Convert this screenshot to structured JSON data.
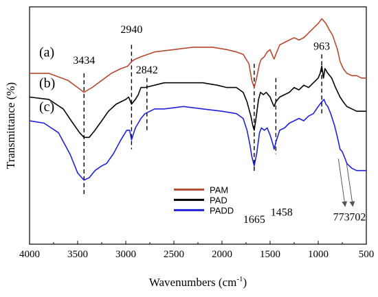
{
  "chart_data": {
    "type": "line",
    "xlabel": "Wavenumbers (cm",
    "xlabel_sup": "-1",
    "xlabel_end": ")",
    "ylabel": "Transmittance (%)",
    "xlim": [
      4000,
      500
    ],
    "x_reversed": true,
    "xticks": [
      4000,
      3500,
      3000,
      2500,
      2000,
      1500,
      1000,
      500
    ],
    "y_tick_labels_shown": false,
    "ylim": [
      0,
      100
    ],
    "legend": {
      "position": "bottom-center"
    },
    "series": [
      {
        "name": "PAM",
        "trace_label": "(a)",
        "color": "#b3492f",
        "points": [
          [
            4000,
            72
          ],
          [
            3800,
            72
          ],
          [
            3600,
            69
          ],
          [
            3500,
            66
          ],
          [
            3434,
            64
          ],
          [
            3350,
            66
          ],
          [
            3250,
            69
          ],
          [
            3150,
            72
          ],
          [
            3050,
            74
          ],
          [
            2980,
            75
          ],
          [
            2940,
            77
          ],
          [
            2900,
            78
          ],
          [
            2842,
            79
          ],
          [
            2700,
            81
          ],
          [
            2500,
            82
          ],
          [
            2300,
            83
          ],
          [
            2100,
            83
          ],
          [
            1950,
            82
          ],
          [
            1850,
            81
          ],
          [
            1780,
            80
          ],
          [
            1720,
            76
          ],
          [
            1690,
            69
          ],
          [
            1665,
            66
          ],
          [
            1640,
            70
          ],
          [
            1610,
            76
          ],
          [
            1590,
            78
          ],
          [
            1560,
            79
          ],
          [
            1530,
            81
          ],
          [
            1500,
            82
          ],
          [
            1470,
            79
          ],
          [
            1458,
            78
          ],
          [
            1440,
            80
          ],
          [
            1400,
            84
          ],
          [
            1350,
            85
          ],
          [
            1300,
            86
          ],
          [
            1250,
            87
          ],
          [
            1200,
            86
          ],
          [
            1150,
            87
          ],
          [
            1100,
            89
          ],
          [
            1050,
            91
          ],
          [
            1000,
            93
          ],
          [
            963,
            95
          ],
          [
            920,
            93
          ],
          [
            880,
            90
          ],
          [
            850,
            88
          ],
          [
            800,
            82
          ],
          [
            773,
            77
          ],
          [
            740,
            74
          ],
          [
            702,
            72
          ],
          [
            650,
            71
          ],
          [
            600,
            71
          ],
          [
            550,
            70
          ],
          [
            500,
            70
          ]
        ]
      },
      {
        "name": "PAD",
        "trace_label": "(b)",
        "color": "#000000",
        "points": [
          [
            4000,
            62
          ],
          [
            3800,
            61
          ],
          [
            3650,
            57
          ],
          [
            3550,
            51
          ],
          [
            3480,
            47
          ],
          [
            3434,
            45
          ],
          [
            3380,
            45
          ],
          [
            3320,
            48
          ],
          [
            3250,
            52
          ],
          [
            3180,
            56
          ],
          [
            3100,
            59
          ],
          [
            3000,
            61
          ],
          [
            2970,
            62
          ],
          [
            2940,
            59
          ],
          [
            2900,
            61
          ],
          [
            2870,
            63
          ],
          [
            2842,
            66
          ],
          [
            2800,
            66
          ],
          [
            2700,
            67
          ],
          [
            2600,
            68
          ],
          [
            2400,
            68
          ],
          [
            2200,
            68
          ],
          [
            2050,
            67
          ],
          [
            1950,
            66
          ],
          [
            1850,
            66
          ],
          [
            1780,
            64
          ],
          [
            1740,
            60
          ],
          [
            1700,
            54
          ],
          [
            1680,
            50
          ],
          [
            1665,
            48
          ],
          [
            1650,
            52
          ],
          [
            1620,
            61
          ],
          [
            1600,
            64
          ],
          [
            1570,
            63
          ],
          [
            1540,
            64
          ],
          [
            1500,
            62
          ],
          [
            1470,
            59
          ],
          [
            1458,
            58
          ],
          [
            1440,
            60
          ],
          [
            1400,
            62
          ],
          [
            1350,
            63
          ],
          [
            1300,
            64
          ],
          [
            1250,
            66
          ],
          [
            1200,
            65
          ],
          [
            1150,
            67
          ],
          [
            1100,
            66
          ],
          [
            1050,
            68
          ],
          [
            1000,
            70
          ],
          [
            980,
            72
          ],
          [
            963,
            75
          ],
          [
            945,
            70
          ],
          [
            930,
            74
          ],
          [
            900,
            72
          ],
          [
            860,
            70
          ],
          [
            820,
            66
          ],
          [
            773,
            62
          ],
          [
            740,
            60
          ],
          [
            702,
            58
          ],
          [
            650,
            57
          ],
          [
            600,
            56
          ],
          [
            550,
            56
          ],
          [
            500,
            56
          ]
        ]
      },
      {
        "name": "PADD",
        "trace_label": "(c)",
        "color": "#1f1fd6",
        "points": [
          [
            4000,
            52
          ],
          [
            3850,
            51
          ],
          [
            3700,
            47
          ],
          [
            3580,
            38
          ],
          [
            3500,
            30
          ],
          [
            3434,
            27
          ],
          [
            3380,
            28
          ],
          [
            3320,
            31
          ],
          [
            3250,
            33
          ],
          [
            3200,
            34
          ],
          [
            3130,
            38
          ],
          [
            3050,
            44
          ],
          [
            2990,
            48
          ],
          [
            2960,
            48
          ],
          [
            2940,
            44
          ],
          [
            2900,
            49
          ],
          [
            2842,
            53
          ],
          [
            2800,
            55
          ],
          [
            2700,
            57
          ],
          [
            2600,
            57
          ],
          [
            2400,
            58
          ],
          [
            2200,
            57
          ],
          [
            2000,
            56
          ],
          [
            1850,
            55
          ],
          [
            1780,
            53
          ],
          [
            1740,
            48
          ],
          [
            1710,
            42
          ],
          [
            1690,
            37
          ],
          [
            1665,
            33
          ],
          [
            1640,
            38
          ],
          [
            1610,
            47
          ],
          [
            1590,
            49
          ],
          [
            1560,
            48
          ],
          [
            1530,
            49
          ],
          [
            1500,
            46
          ],
          [
            1470,
            42
          ],
          [
            1458,
            40
          ],
          [
            1440,
            43
          ],
          [
            1400,
            48
          ],
          [
            1350,
            49
          ],
          [
            1300,
            51
          ],
          [
            1250,
            52
          ],
          [
            1200,
            53
          ],
          [
            1150,
            52
          ],
          [
            1100,
            54
          ],
          [
            1050,
            55
          ],
          [
            1000,
            58
          ],
          [
            963,
            60
          ],
          [
            940,
            61
          ],
          [
            920,
            59
          ],
          [
            900,
            58
          ],
          [
            870,
            55
          ],
          [
            830,
            50
          ],
          [
            800,
            45
          ],
          [
            773,
            40
          ],
          [
            750,
            39
          ],
          [
            720,
            36
          ],
          [
            702,
            34
          ],
          [
            650,
            32
          ],
          [
            600,
            31
          ],
          [
            550,
            31
          ],
          [
            500,
            31
          ]
        ]
      }
    ],
    "trace_labels": [
      {
        "text": "(a)",
        "x": 3900,
        "y": 79
      },
      {
        "text": "(b)",
        "x": 3900,
        "y": 66
      },
      {
        "text": "(c)",
        "x": 3900,
        "y": 56
      }
    ],
    "markers": [
      {
        "label": "3434",
        "x": 3434,
        "y_top": 72,
        "y_bottom": 20,
        "label_x": 3434,
        "label_y": 76
      },
      {
        "label": "2940",
        "x": 2940,
        "y_top": 84,
        "y_bottom": 40,
        "label_x": 2940,
        "label_y": 89
      },
      {
        "label": "2842",
        "x": 2780,
        "y_top": 70,
        "y_bottom": 47,
        "label_x": 2780,
        "label_y": 72
      },
      {
        "label": "1665",
        "x": 1665,
        "y_top": 76,
        "y_bottom": 30,
        "label_x": 1665,
        "label_y": 9
      },
      {
        "label": "1458",
        "x": 1440,
        "y_top": 70,
        "y_bottom": 38,
        "label_x": 1380,
        "label_y": 12
      },
      {
        "label": "963",
        "x": 963,
        "y_top": 80,
        "y_bottom": 54,
        "label_x": 963,
        "label_y": 82
      }
    ],
    "arrows": [
      {
        "from_x": 790,
        "from_y": 36,
        "to_x": 720,
        "to_y": 16
      },
      {
        "from_x": 705,
        "from_y": 34,
        "to_x": 640,
        "to_y": 16
      }
    ],
    "arrow_labels": [
      {
        "text": "773",
        "x": 760,
        "y": 10
      },
      {
        "text": "702",
        "x": 590,
        "y": 10
      }
    ]
  }
}
